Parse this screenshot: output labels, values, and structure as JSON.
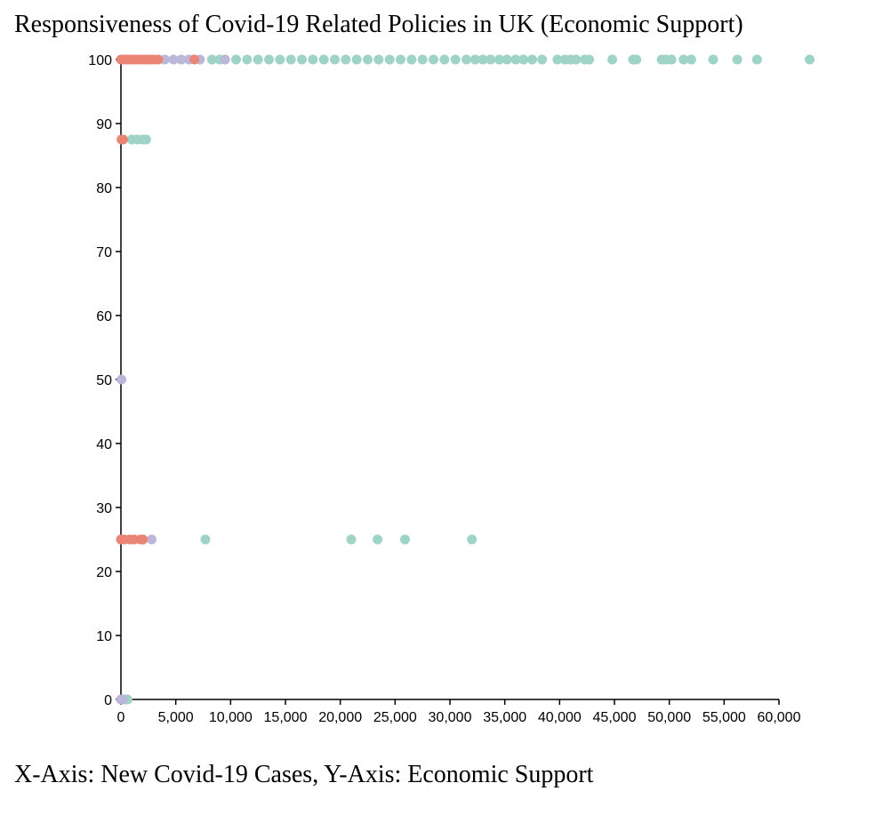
{
  "chart_data": {
    "type": "scatter",
    "title": "Responsiveness of Covid-19 Related Policies in UK (Economic Support)",
    "caption": "X-Axis: New Covid-19 Cases, Y-Axis: Economic Support",
    "xlim": [
      0,
      60000
    ],
    "ylim": [
      0,
      100
    ],
    "x_ticks": [
      0,
      5000,
      10000,
      15000,
      20000,
      25000,
      30000,
      35000,
      40000,
      45000,
      50000,
      55000,
      60000
    ],
    "x_tick_labels": [
      "0",
      "5,000",
      "10,000",
      "15,000",
      "20,000",
      "25,000",
      "30,000",
      "35,000",
      "40,000",
      "45,000",
      "50,000",
      "55,000",
      "60,000"
    ],
    "y_ticks": [
      0,
      10,
      20,
      30,
      40,
      50,
      60,
      70,
      80,
      90,
      100
    ],
    "y_tick_labels": [
      "0",
      "10",
      "20",
      "30",
      "40",
      "50",
      "60",
      "70",
      "80",
      "90",
      "100"
    ],
    "grid": false,
    "legend": "none",
    "series": [
      {
        "color": "#9ed3c6",
        "points": [
          [
            8300,
            100
          ],
          [
            9000,
            100
          ],
          [
            10500,
            100
          ],
          [
            11500,
            100
          ],
          [
            12500,
            100
          ],
          [
            13500,
            100
          ],
          [
            14500,
            100
          ],
          [
            15500,
            100
          ],
          [
            16500,
            100
          ],
          [
            17500,
            100
          ],
          [
            18500,
            100
          ],
          [
            19500,
            100
          ],
          [
            20500,
            100
          ],
          [
            21500,
            100
          ],
          [
            22500,
            100
          ],
          [
            23500,
            100
          ],
          [
            24500,
            100
          ],
          [
            25500,
            100
          ],
          [
            26500,
            100
          ],
          [
            27500,
            100
          ],
          [
            28500,
            100
          ],
          [
            29500,
            100
          ],
          [
            30500,
            100
          ],
          [
            31500,
            100
          ],
          [
            32300,
            100
          ],
          [
            33000,
            100
          ],
          [
            33700,
            100
          ],
          [
            34500,
            100
          ],
          [
            35200,
            100
          ],
          [
            36000,
            100
          ],
          [
            36700,
            100
          ],
          [
            37500,
            100
          ],
          [
            38400,
            100
          ],
          [
            39800,
            100
          ],
          [
            40500,
            100
          ],
          [
            41000,
            100
          ],
          [
            41500,
            100
          ],
          [
            42300,
            100
          ],
          [
            42700,
            100
          ],
          [
            44800,
            100
          ],
          [
            46700,
            100
          ],
          [
            47000,
            100
          ],
          [
            49300,
            100
          ],
          [
            49700,
            100
          ],
          [
            50200,
            100
          ],
          [
            51300,
            100
          ],
          [
            52000,
            100
          ],
          [
            54000,
            100
          ],
          [
            56200,
            100
          ],
          [
            58000,
            100
          ],
          [
            62800,
            100
          ],
          [
            1000,
            87.5
          ],
          [
            1500,
            87.5
          ],
          [
            2000,
            87.5
          ],
          [
            2300,
            87.5
          ],
          [
            7700,
            25
          ],
          [
            21000,
            25
          ],
          [
            23400,
            25
          ],
          [
            25900,
            25
          ],
          [
            32000,
            25
          ],
          [
            400,
            0
          ],
          [
            600,
            0
          ]
        ]
      },
      {
        "color": "#bcb6d8",
        "points": [
          [
            4000,
            100
          ],
          [
            4800,
            100
          ],
          [
            5500,
            100
          ],
          [
            6200,
            100
          ],
          [
            7200,
            100
          ],
          [
            9500,
            100
          ],
          [
            50,
            50
          ],
          [
            2800,
            25
          ],
          [
            0,
            0
          ],
          [
            150,
            0
          ]
        ]
      },
      {
        "color": "#ea8576",
        "points": [
          [
            0,
            100
          ],
          [
            300,
            100
          ],
          [
            600,
            100
          ],
          [
            900,
            100
          ],
          [
            1200,
            100
          ],
          [
            1500,
            100
          ],
          [
            1800,
            100
          ],
          [
            2100,
            100
          ],
          [
            2400,
            100
          ],
          [
            2700,
            100
          ],
          [
            3000,
            100
          ],
          [
            3400,
            100
          ],
          [
            6700,
            100
          ],
          [
            50,
            87.5
          ],
          [
            200,
            87.5
          ],
          [
            0,
            25
          ],
          [
            300,
            25
          ],
          [
            800,
            25
          ],
          [
            1200,
            25
          ],
          [
            1800,
            25
          ],
          [
            2000,
            25
          ]
        ]
      }
    ]
  }
}
